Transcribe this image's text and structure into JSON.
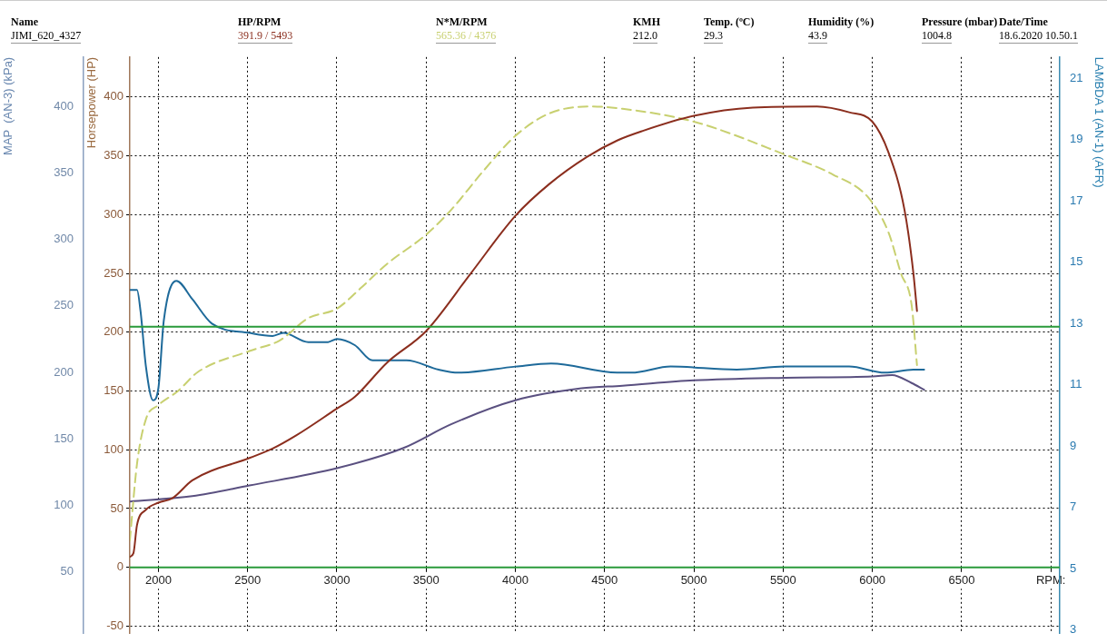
{
  "chart_data": {
    "type": "line",
    "annotations": [
      "Name",
      "HP/RPM",
      "N*M/RPM",
      "KMH",
      "Temp. (ºC)",
      "Humidity (%)",
      "Pressure (mbar)",
      "Date/Time",
      "JIMI_620_4327",
      "391.9 / 5493",
      "565.36 / 4376",
      "212.0",
      "29.3",
      "43.9",
      "1004.8",
      "18.6.2020 10.50.1"
    ],
    "ylabel": "Horsepower (HP)",
    "y3label": "MAP  (AN-3) (kPa)",
    "y2label": "LAMBDA 1 (AN-1) (AFR)",
    "xlim": [
      1840,
      7050
    ],
    "xticks": [
      2000,
      2500,
      3000,
      3500,
      4000,
      4500,
      5000,
      5500,
      6000,
      6500,
      {
        "value": 7000,
        "label": "RPM:"
      }
    ],
    "ylim": [
      -56,
      434
    ],
    "yticks": [
      -50,
      0,
      50,
      100,
      150,
      200,
      250,
      300,
      350,
      400
    ],
    "y3lim": [
      4,
      437
    ],
    "y3ticks": [
      50,
      100,
      150,
      200,
      250,
      300,
      350,
      400
    ],
    "y2lim": [
      2.9,
      21.7
    ],
    "y2ticks": [
      3,
      5,
      7,
      9,
      11,
      13,
      15,
      17,
      19,
      21
    ],
    "grid": true,
    "legend": false,
    "marker": "none",
    "ref_lines": [
      {
        "axis": "y2",
        "value": 12.9,
        "color": "#2a9a3a"
      },
      {
        "axis": "y",
        "value": 0,
        "color": "#2a9a3a"
      }
    ],
    "series": [
      {
        "color": "#8b2e1e",
        "line_style": "solid",
        "x": [
          1840,
          1860,
          1880,
          1930,
          2000,
          2080,
          2190,
          2510,
          2640,
          2770,
          3000,
          3100,
          3280,
          3500,
          3750,
          4000,
          4190,
          4400,
          4570,
          4710,
          5000,
          5330,
          5690,
          5870,
          6000,
          6090,
          6180,
          6230,
          6250
        ],
        "values": [
          9,
          12,
          36,
          49,
          55,
          59,
          74,
          93,
          101,
          112,
          135,
          145,
          174,
          201,
          250,
          299,
          326,
          349,
          363,
          371,
          384,
          391,
          392,
          387,
          379,
          353,
          304,
          250,
          218
        ]
      },
      {
        "color": "#c8d070",
        "line_style": "dashed",
        "x": [
          1840,
          1880,
          1930,
          2000,
          2110,
          2220,
          2510,
          2680,
          2840,
          3000,
          3130,
          3280,
          3500,
          3640,
          3820,
          4000,
          4190,
          4420,
          4600,
          5000,
          5510,
          5780,
          5980,
          6090,
          6160,
          6220,
          6250
        ],
        "values": [
          23,
          88,
          126,
          138,
          150,
          166,
          184,
          193,
          212,
          220,
          237,
          258,
          283,
          304,
          337,
          367,
          386,
          392,
          390,
          379,
          351,
          334,
          314,
          285,
          250,
          223,
          172
        ]
      },
      {
        "color": "#5a5080",
        "line_style": "solid",
        "axis": "y3",
        "x": [
          1840,
          2190,
          2510,
          3000,
          3370,
          3640,
          4000,
          4370,
          4600,
          5000,
          5510,
          6000,
          6110,
          6220,
          6290
        ],
        "values": [
          103,
          107,
          115,
          128,
          143,
          161,
          179,
          188,
          190,
          194,
          196,
          197,
          198,
          192,
          187
        ]
      },
      {
        "color": "#1e6a9a",
        "line_style": "solid",
        "axis": "y2",
        "x": [
          1840,
          1880,
          1900,
          1930,
          1970,
          2000,
          2030,
          2100,
          2190,
          2300,
          2510,
          2640,
          2700,
          2840,
          2950,
          3000,
          3100,
          3200,
          3390,
          3570,
          3680,
          4000,
          4200,
          4570,
          4650,
          4870,
          5240,
          5510,
          5870,
          6070,
          6230,
          6290
        ],
        "values": [
          14.1,
          14.1,
          13.4,
          11.6,
          10.5,
          10.9,
          13.1,
          14.4,
          13.8,
          13.0,
          12.7,
          12.6,
          12.7,
          12.4,
          12.4,
          12.5,
          12.3,
          11.8,
          11.8,
          11.5,
          11.4,
          11.6,
          11.7,
          11.4,
          11.4,
          11.6,
          11.5,
          11.6,
          11.6,
          11.4,
          11.5,
          11.5
        ]
      }
    ]
  }
}
